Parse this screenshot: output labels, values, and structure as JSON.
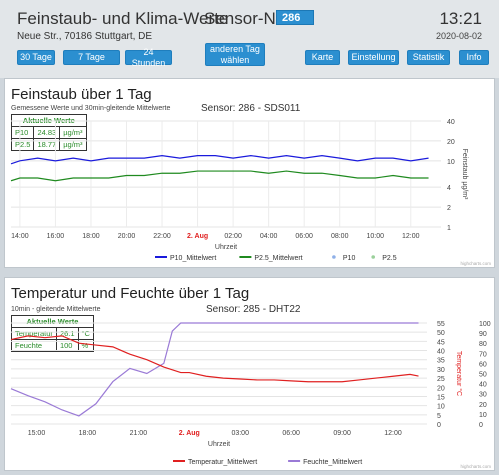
{
  "header": {
    "title": "Feinstaub- und Klima-Werte",
    "sensor_label": "Sensor-Nr:",
    "sensor_value": "286",
    "time": "13:21",
    "address": "Neue Str., 70186 Stuttgart, DE",
    "date": "2020-08-02"
  },
  "buttons": {
    "days30": "30 Tage",
    "days7": "7 Tage",
    "hours24": "24 Stunden",
    "other_day": "anderen Tag wählen",
    "map": "Karte",
    "settings": "Einstellung",
    "stats": "Statistik",
    "info": "Info"
  },
  "panel1": {
    "title": "Feinstaub über 1 Tag",
    "subtitle": "Gemessene Werte und 30min-gleitende Mittelwerte",
    "sensor": "Sensor: 286 - SDS011",
    "current": {
      "heading": "Aktuelle Werte",
      "rows": [
        [
          "P10",
          "24.83",
          "µg/m³"
        ],
        [
          "P2.5",
          "18.77",
          "µg/m³"
        ]
      ]
    },
    "watermark": "highcharts.com"
  },
  "panel2": {
    "title": "Temperatur und Feuchte über 1 Tag",
    "subtitle": "10min - gleitende Mittelwerte",
    "sensor": "Sensor: 285 - DHT22",
    "current": {
      "heading": "Aktuelle Werte",
      "rows": [
        [
          "Temperatur",
          "26.1",
          "°C"
        ],
        [
          "Feuchte",
          "100",
          "%"
        ]
      ]
    },
    "watermark": "highcharts.com"
  },
  "colors": {
    "p10": "#1a1adc",
    "p25": "#1f8a1f",
    "temp": "#e02020",
    "hum": "#9a7ad6",
    "accent": "#2b8fd0"
  },
  "chart_data": [
    {
      "type": "line",
      "xlabel": "Uhrzeit",
      "ylabel": "Feinstaub µg/m³",
      "x_ticks": [
        "14:00",
        "16:00",
        "18:00",
        "20:00",
        "22:00",
        "2. Aug",
        "02:00",
        "04:00",
        "06:00",
        "08:00",
        "10:00",
        "12:00"
      ],
      "y_ticks": [
        "40",
        "20",
        "10",
        "4",
        "2",
        "1"
      ],
      "ylim": [
        1,
        40
      ],
      "yscale": "log",
      "series": [
        {
          "name": "P10_Mittelwert",
          "x": [
            13.5,
            14,
            15,
            16,
            17,
            18,
            19,
            20,
            21,
            22,
            23,
            24,
            25,
            26,
            27,
            28,
            29,
            30,
            31,
            32,
            33,
            34,
            35,
            36,
            37
          ],
          "values": [
            9,
            10,
            11,
            10,
            11,
            10,
            11,
            11,
            11,
            12,
            11,
            12,
            12,
            11,
            12,
            11,
            12,
            11,
            12,
            11,
            10,
            11,
            11,
            10,
            11
          ]
        },
        {
          "name": "P2.5_Mittelwert",
          "x": [
            13.5,
            14,
            15,
            16,
            17,
            18,
            19,
            20,
            21,
            22,
            23,
            24,
            25,
            26,
            27,
            28,
            29,
            30,
            31,
            32,
            33,
            34,
            35,
            36,
            37
          ],
          "values": [
            5,
            5.5,
            5.5,
            5,
            5.5,
            5.5,
            5.5,
            6,
            6,
            6.5,
            6.5,
            7,
            7,
            7,
            7,
            6.5,
            7,
            6.5,
            6.5,
            6,
            5.5,
            5.5,
            6,
            5.5,
            5.5
          ]
        },
        {
          "name": "P10",
          "x": [],
          "values": []
        },
        {
          "name": "P2.5",
          "x": [],
          "values": []
        }
      ]
    },
    {
      "type": "line",
      "xlabel": "Uhrzeit",
      "y_left_label": "Temperatur °C",
      "y_right_label": "rel. Feuchte %",
      "x_ticks": [
        "15:00",
        "18:00",
        "21:00",
        "2. Aug",
        "03:00",
        "06:00",
        "09:00",
        "12:00"
      ],
      "y_left_ticks": [
        "55",
        "50",
        "45",
        "40",
        "35",
        "30",
        "25",
        "20",
        "15",
        "10",
        "5",
        "0"
      ],
      "y_right_ticks": [
        "100",
        "90",
        "80",
        "70",
        "60",
        "50",
        "40",
        "30",
        "20",
        "10",
        "0"
      ],
      "y_left_lim": [
        0,
        55
      ],
      "y_right_lim": [
        0,
        100
      ],
      "series": [
        {
          "name": "Temperatur_Mittelwert",
          "axis": "left",
          "x": [
            13.5,
            14.5,
            15.5,
            16.5,
            17.5,
            18.5,
            19.5,
            20.5,
            21.5,
            22.5,
            23.5,
            24,
            25,
            26,
            27,
            28,
            29,
            30,
            31,
            32,
            33,
            34,
            35,
            36,
            37,
            37.5
          ],
          "values": [
            46,
            48,
            47,
            48,
            44,
            43,
            42,
            38,
            35,
            31,
            28,
            28,
            26,
            25,
            24.5,
            24,
            24,
            23.5,
            23,
            23,
            23,
            24,
            25,
            26,
            27,
            26.1
          ]
        },
        {
          "name": "Feuchte_Mittelwert",
          "axis": "right",
          "x": [
            13.5,
            14.5,
            15.5,
            16.5,
            17.5,
            18.5,
            19.5,
            20.5,
            21.5,
            22.5,
            23,
            23.5,
            24,
            25,
            26,
            27,
            28,
            29,
            30,
            31,
            32,
            33,
            34,
            35,
            36,
            37,
            37.5
          ],
          "values": [
            35,
            28,
            22,
            14,
            8,
            20,
            42,
            55,
            50,
            60,
            92,
            100,
            100,
            100,
            100,
            100,
            100,
            100,
            100,
            100,
            100,
            100,
            100,
            100,
            100,
            100,
            100
          ]
        }
      ]
    }
  ]
}
